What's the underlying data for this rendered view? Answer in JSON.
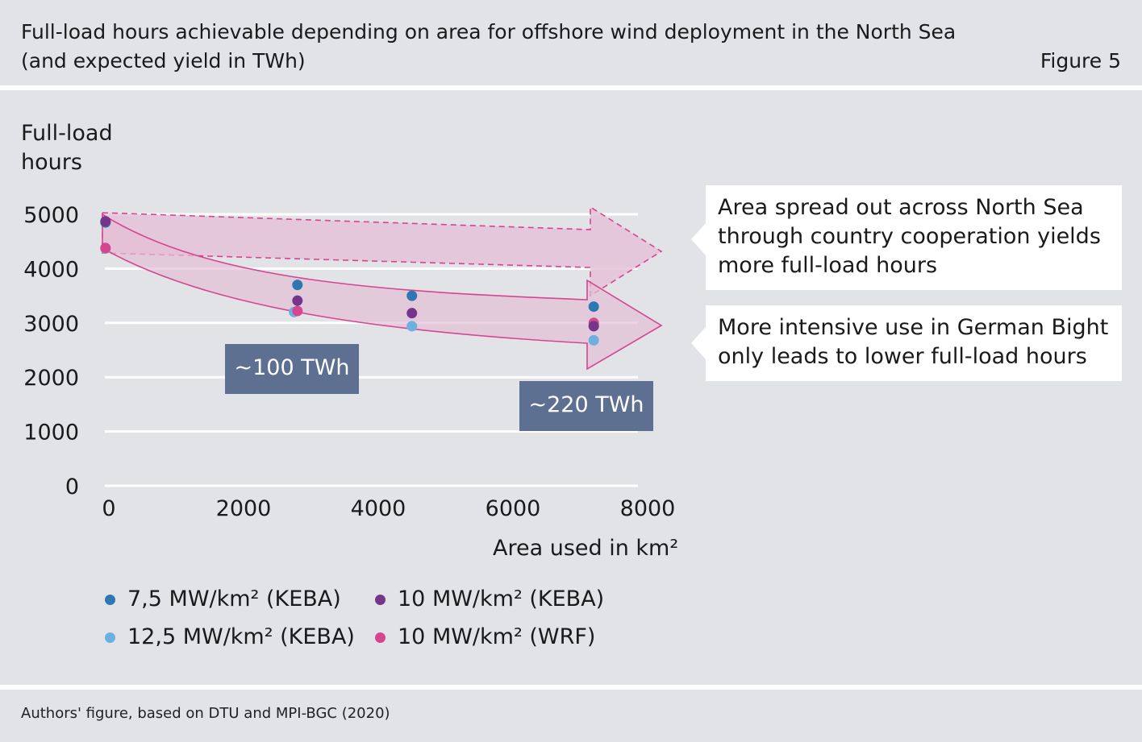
{
  "header": {
    "title_line1": "Full-load hours achievable depending on area for offshore wind deployment in the North Sea",
    "title_line2": "(and expected yield in TWh)",
    "figure_label": "Figure 5"
  },
  "footer": {
    "source": "Authors' figure, based on DTU and MPI-BGC (2020)"
  },
  "callouts": {
    "north_sea": "Area spread out across North Sea through country cooperation yields more full-load hours",
    "german_bight": "More intensive use in German Bight only leads to lower full-load hours"
  },
  "yield_labels": {
    "low": "~100 TWh",
    "high": "~220 TWh"
  },
  "colors": {
    "background": "#e2e3e7",
    "band_fill": "#e4bfd6",
    "band_stroke": "#d6458f",
    "twh_box": "#5d7091",
    "grid": "#ffffff"
  },
  "chart_data": {
    "type": "scatter",
    "title": "Full-load hours achievable depending on area for offshore wind deployment in the North Sea (and expected yield in TWh)",
    "ylabel_line1": "Full-load",
    "ylabel_line2": "hours",
    "xlabel": "Area used in km²",
    "xlim": [
      0,
      8000
    ],
    "ylim": [
      0,
      5000
    ],
    "xticks": [
      "0",
      "2000",
      "4000",
      "6000",
      "8000"
    ],
    "yticks": [
      "0",
      "1000",
      "2000",
      "3000",
      "4000",
      "5000"
    ],
    "grid": "horizontal",
    "legend_position": "bottom-left",
    "series": [
      {
        "name": "7,5 MW/km² (KEBA)",
        "color": "#2d78b0",
        "points": [
          [
            -50,
            4850
          ],
          [
            2800,
            3700
          ],
          [
            4500,
            3500
          ],
          [
            7200,
            3300
          ]
        ]
      },
      {
        "name": "10 MW/km² (KEBA)",
        "color": "#74358a",
        "points": [
          [
            -50,
            4870
          ],
          [
            2800,
            3410
          ],
          [
            4500,
            3180
          ],
          [
            7200,
            2940
          ]
        ]
      },
      {
        "name": "12,5 MW/km² (KEBA)",
        "color": "#6bb0de",
        "points": [
          [
            -50,
            4370
          ],
          [
            2750,
            3200
          ],
          [
            4500,
            2940
          ],
          [
            7200,
            2680
          ]
        ]
      },
      {
        "name": "10 MW/km² (WRF)",
        "color": "#d6458f",
        "points": [
          [
            -50,
            4380
          ],
          [
            2800,
            3220
          ],
          [
            7200,
            3000
          ]
        ]
      }
    ]
  }
}
